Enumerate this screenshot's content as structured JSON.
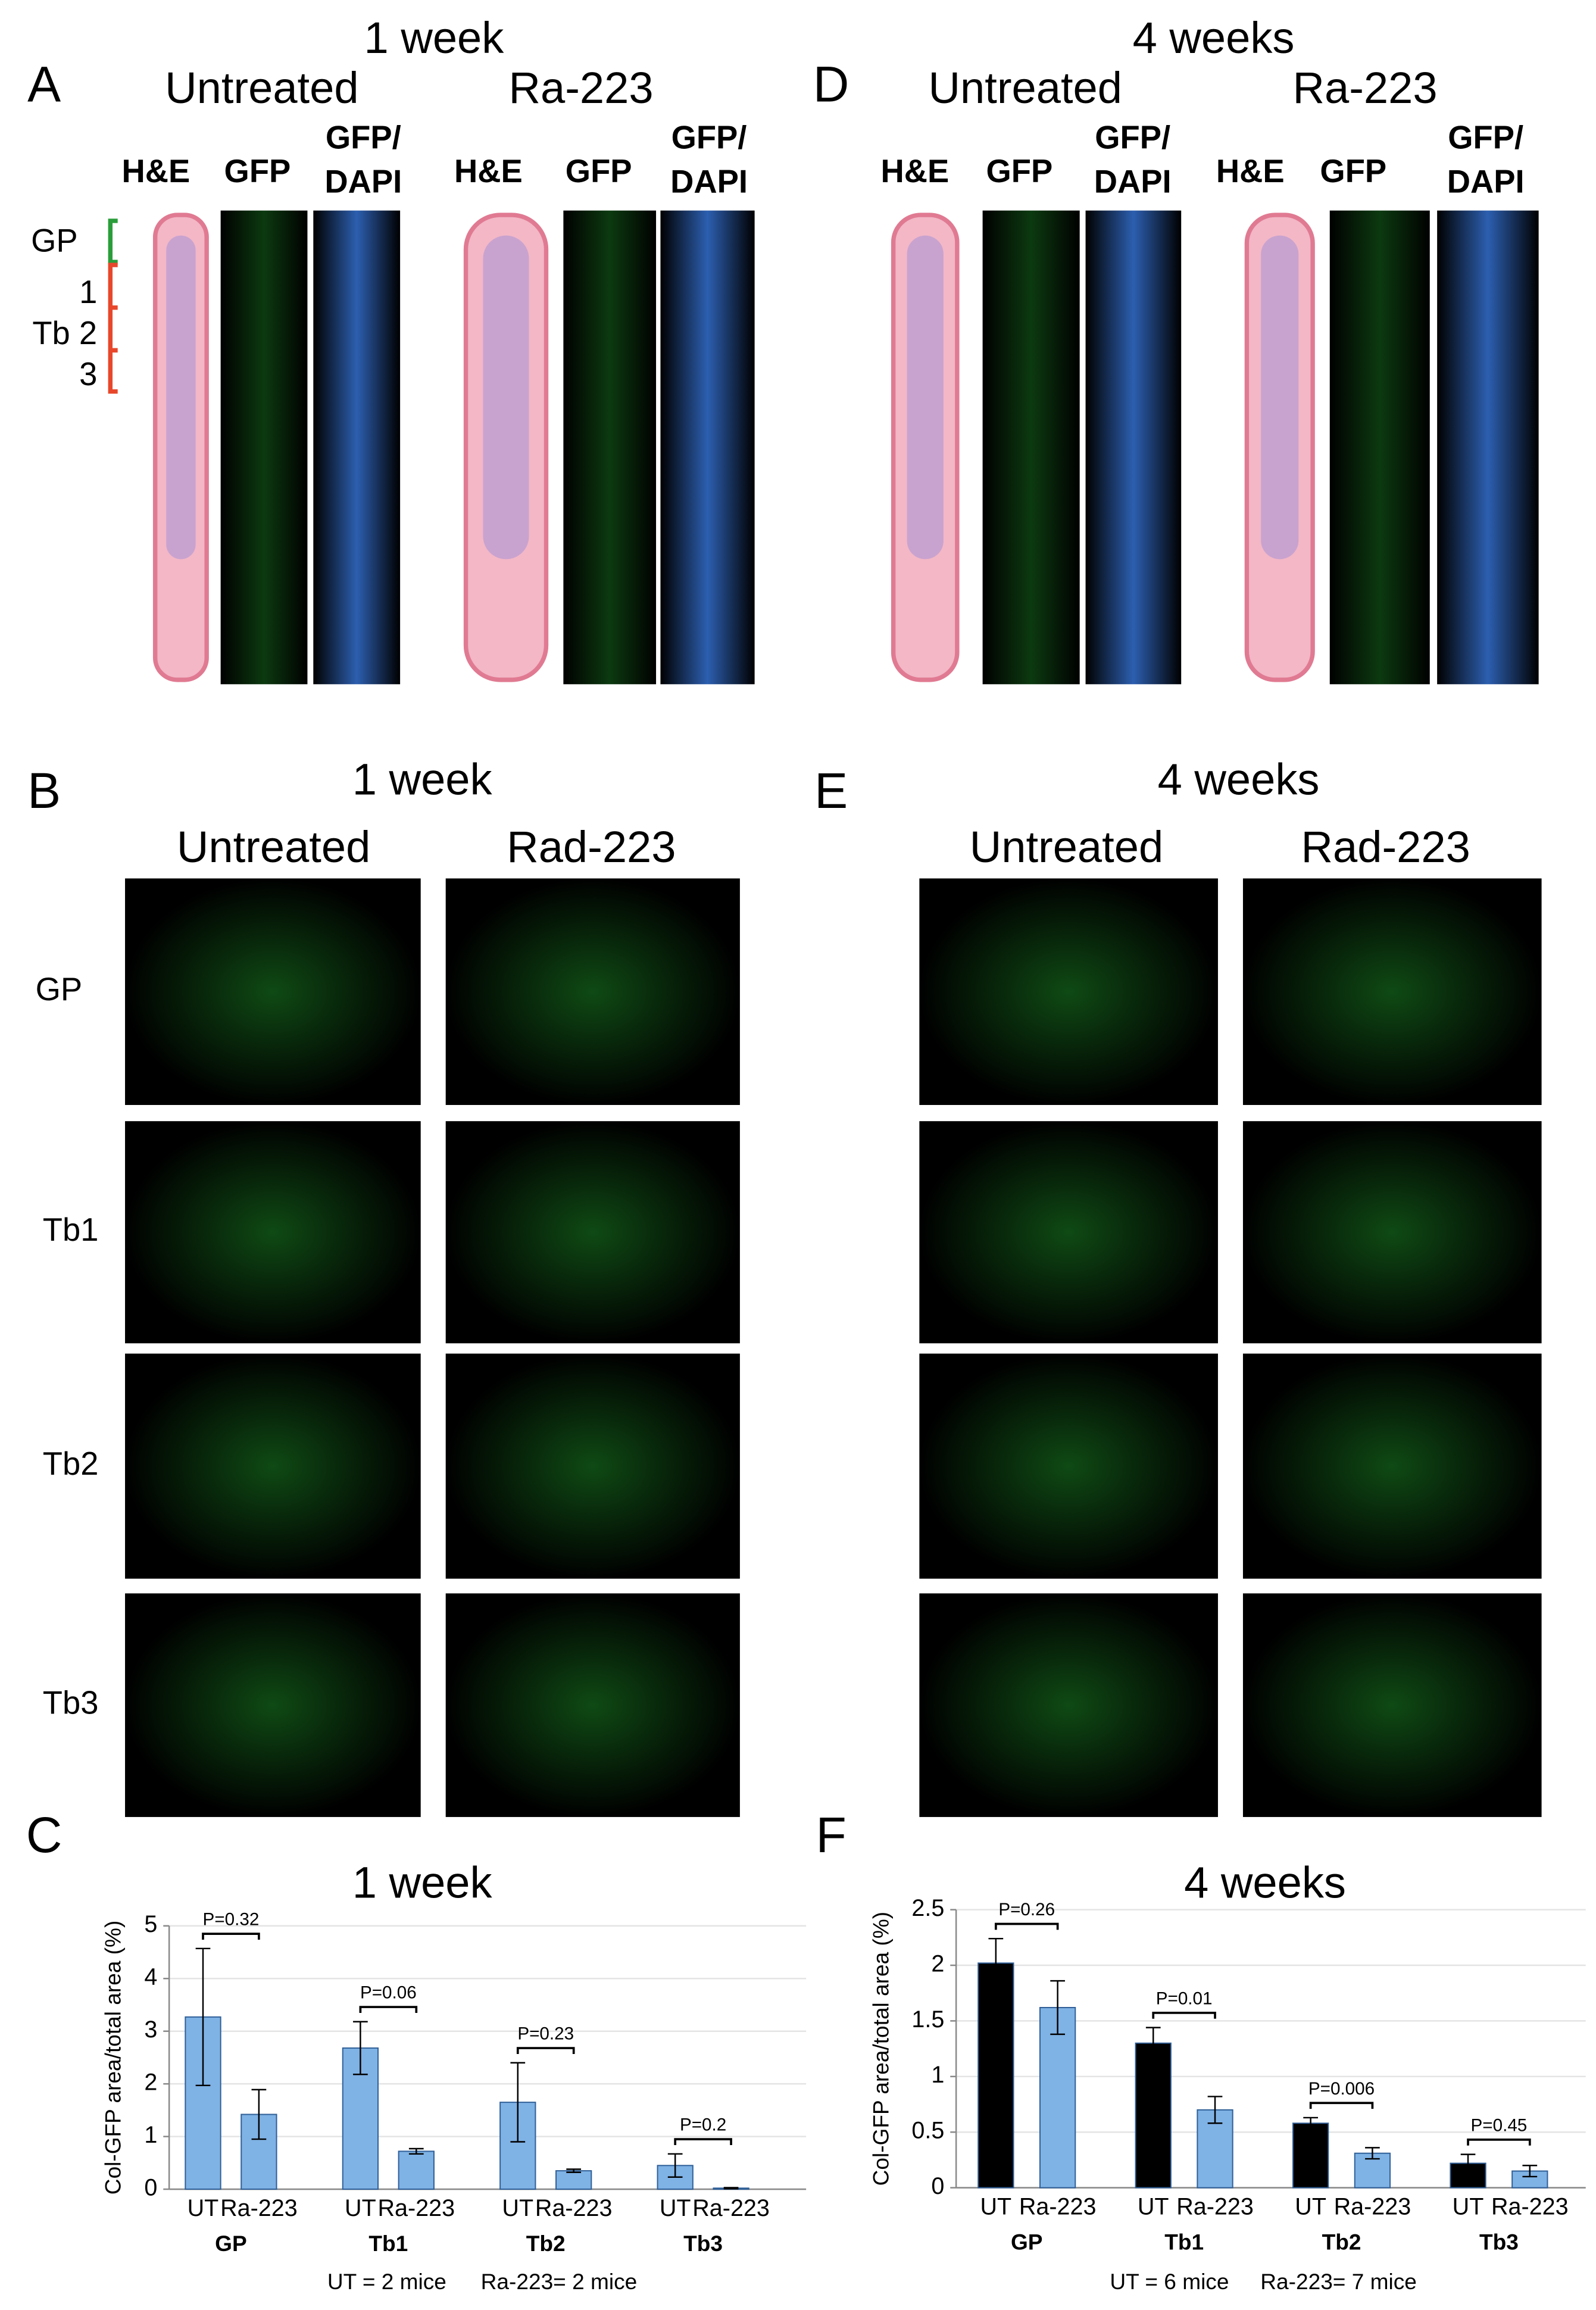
{
  "panel_letters": [
    "A",
    "B",
    "C",
    "D",
    "E",
    "F"
  ],
  "panel_A": {
    "title": "1 week",
    "groups": [
      "Untreated",
      "Ra-223"
    ]
  },
  "panel_D": {
    "title": "4 weeks",
    "groups": [
      "Untreated",
      "Ra-223"
    ]
  },
  "stain_labels": [
    "H&E",
    "GFP",
    "GFP/",
    "DAPI"
  ],
  "zone_labels": [
    "GP",
    "1",
    "Tb 2",
    "3"
  ],
  "panel_B": {
    "title": "1 week",
    "groups": [
      "Untreated",
      "Rad-223"
    ],
    "rows": [
      "GP",
      "Tb1",
      "Tb2",
      "Tb3"
    ]
  },
  "panel_E": {
    "title": "4 weeks",
    "groups": [
      "Untreated",
      "Rad-223"
    ],
    "rows": [
      "GP",
      "Tb1",
      "Tb2",
      "Tb3"
    ]
  },
  "chart_data": [
    {
      "type": "bar",
      "title": "1 week",
      "y_label": "Col-GFP area/total area (%)",
      "categories": [
        "GP",
        "Tb1",
        "Tb2",
        "Tb3"
      ],
      "series": [
        {
          "name": "UT",
          "color": "#7fb2e5",
          "values": [
            3.27,
            2.68,
            1.65,
            0.45
          ],
          "errors": [
            1.3,
            0.5,
            0.75,
            0.22
          ]
        },
        {
          "name": "Ra-223",
          "color": "#7fb2e5",
          "values": [
            1.42,
            0.72,
            0.35,
            0.02
          ],
          "errors": [
            0.47,
            0.05,
            0.03,
            0.01
          ]
        }
      ],
      "p_values": [
        "P=0.32",
        "P=0.06",
        "P=0.23",
        "P=0.2"
      ],
      "ylim": [
        0,
        5
      ],
      "yticks": [
        0,
        1,
        2,
        3,
        4,
        5
      ],
      "grid": true,
      "notes": [
        "UT = 2 mice",
        "Ra-223= 2 mice"
      ]
    },
    {
      "type": "bar",
      "title": "4 weeks",
      "y_label": "Col-GFP area/total area (%)",
      "categories": [
        "GP",
        "Tb1",
        "Tb2",
        "Tb3"
      ],
      "series": [
        {
          "name": "UT",
          "color": "#000000",
          "values": [
            2.02,
            1.3,
            0.58,
            0.22
          ],
          "errors": [
            0.22,
            0.14,
            0.05,
            0.08
          ]
        },
        {
          "name": "Ra-223",
          "color": "#7fb2e5",
          "values": [
            1.62,
            0.7,
            0.31,
            0.15
          ],
          "errors": [
            0.24,
            0.12,
            0.05,
            0.05
          ]
        }
      ],
      "p_values": [
        "P=0.26",
        "P=0.01",
        "P=0.006",
        "P=0.45"
      ],
      "ylim": [
        0,
        2.5
      ],
      "yticks": [
        0,
        0.5,
        1,
        1.5,
        2,
        2.5
      ],
      "grid": true,
      "notes": [
        "UT = 6 mice",
        "Ra-223= 7 mice"
      ]
    }
  ]
}
